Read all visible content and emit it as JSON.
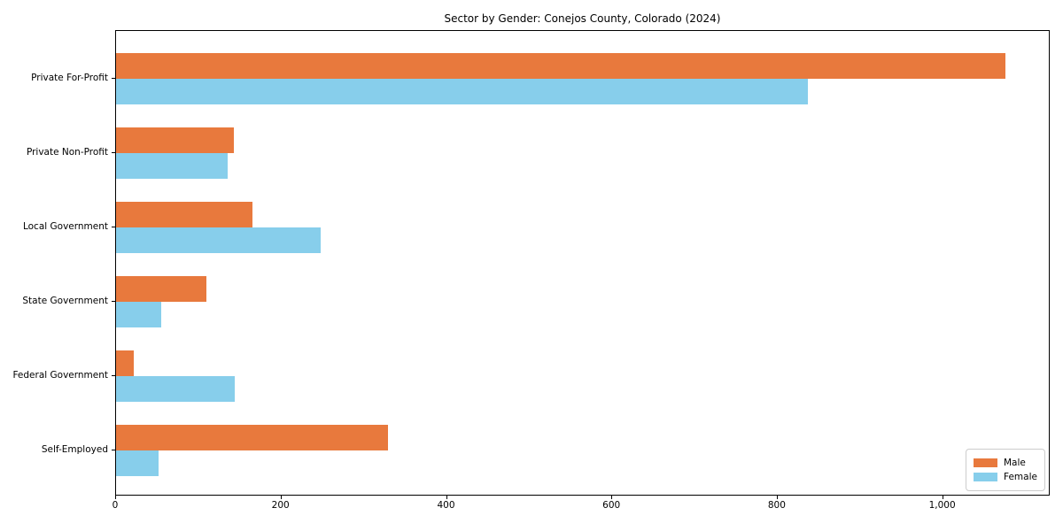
{
  "chart_data": {
    "type": "bar",
    "orientation": "horizontal",
    "title": "Sector by Gender: Conejos County, Colorado (2024)",
    "categories": [
      "Private For-Profit",
      "Private Non-Profit",
      "Local Government",
      "State Government",
      "Federal Government",
      "Self-Employed"
    ],
    "series": [
      {
        "name": "Male",
        "color": "#e8793d",
        "values": [
          1075,
          142,
          165,
          109,
          21,
          329
        ]
      },
      {
        "name": "Female",
        "color": "#87ceeb",
        "values": [
          837,
          135,
          247,
          55,
          143,
          51
        ]
      }
    ],
    "xlabel": "",
    "ylabel": "",
    "xlim": [
      0,
      1130
    ],
    "x_ticks": [
      0,
      200,
      400,
      600,
      800,
      1000
    ],
    "x_tick_labels": [
      "0",
      "200",
      "400",
      "600",
      "800",
      "1,000"
    ],
    "grid": false,
    "legend": {
      "position": "lower right",
      "entries": [
        "Male",
        "Female"
      ]
    }
  }
}
